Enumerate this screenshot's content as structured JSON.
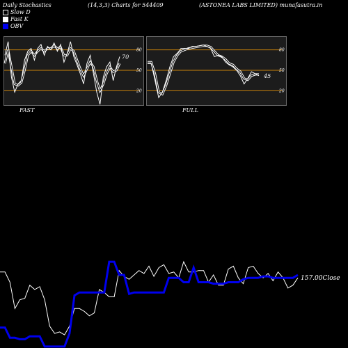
{
  "header": {
    "title": "Daily Stochastics",
    "params": "(14,3,3) Charts for 544409",
    "company": "(ASTONEA LABS LIMITED) munafasutra.in"
  },
  "legend": [
    {
      "label": "Slow  D",
      "color": "#000000"
    },
    {
      "label": "Fast K",
      "color": "#ffffff"
    },
    {
      "label": "OBV",
      "color": "#0000ee"
    }
  ],
  "colors": {
    "background": "#000000",
    "panel": "#1c1c1c",
    "level_line": "#c8820a",
    "obv": "#0000ee",
    "price": "#ffffff"
  },
  "chart_data": [
    {
      "type": "line",
      "title": "FAST",
      "yticks": [
        20,
        50,
        80
      ],
      "ylim": [
        0,
        100
      ],
      "levels": [
        20,
        50,
        80
      ],
      "last_value_label": "70",
      "series": [
        {
          "name": "Fast K",
          "values": [
            72,
            92,
            40,
            18,
            30,
            35,
            65,
            78,
            82,
            65,
            82,
            88,
            72,
            85,
            80,
            90,
            78,
            88,
            62,
            75,
            92,
            70,
            58,
            45,
            30,
            60,
            72,
            45,
            18,
            0,
            40,
            55,
            62,
            35,
            55,
            70
          ]
        },
        {
          "name": "Slow  D",
          "values": [
            60,
            80,
            55,
            30,
            28,
            32,
            50,
            72,
            78,
            72,
            78,
            82,
            78,
            82,
            82,
            86,
            82,
            84,
            72,
            72,
            82,
            78,
            65,
            52,
            42,
            52,
            62,
            55,
            35,
            20,
            30,
            45,
            55,
            48,
            50,
            60
          ]
        }
      ]
    },
    {
      "type": "line",
      "title": "FULL",
      "yticks": [
        20,
        50,
        80
      ],
      "ylim": [
        0,
        100
      ],
      "levels": [
        20,
        50,
        80
      ],
      "last_value_label": "45",
      "series": [
        {
          "name": "Fast K",
          "values": [
            60,
            60,
            35,
            10,
            18,
            35,
            55,
            70,
            75,
            82,
            82,
            82,
            85,
            85,
            86,
            87,
            85,
            82,
            70,
            72,
            70,
            62,
            58,
            55,
            50,
            42,
            30,
            38,
            48,
            45,
            42
          ]
        },
        {
          "name": "Slow  D",
          "values": [
            62,
            62,
            45,
            18,
            15,
            28,
            45,
            62,
            72,
            78,
            80,
            82,
            83,
            84,
            85,
            86,
            86,
            84,
            78,
            72,
            70,
            66,
            60,
            58,
            52,
            48,
            38,
            36,
            42,
            44,
            44
          ]
        }
      ]
    },
    {
      "type": "line",
      "title": "",
      "close_label": "157.00Close",
      "series": [
        {
          "name": "OBV",
          "values": [
            14,
            14,
            7,
            7,
            6,
            6,
            8,
            8,
            8,
            1,
            1,
            1,
            1,
            1,
            10,
            36,
            38,
            38,
            38,
            38,
            38,
            38,
            59,
            59,
            50,
            50,
            37,
            38,
            38,
            38,
            38,
            38,
            38,
            38,
            48,
            48,
            48,
            45,
            45,
            55,
            45,
            45,
            45,
            44,
            44,
            44,
            45,
            45,
            45,
            47,
            48,
            48,
            48,
            49,
            49,
            48,
            48,
            48,
            48,
            48,
            50
          ]
        },
        {
          "name": "Price",
          "values": [
            52,
            52,
            45,
            27,
            33,
            34,
            43,
            40,
            42,
            33,
            15,
            10,
            11,
            9,
            15,
            27,
            27,
            25,
            22,
            24,
            40,
            38,
            35,
            35,
            53,
            49,
            47,
            50,
            53,
            51,
            56,
            49,
            55,
            57,
            51,
            52,
            48,
            59,
            52,
            52,
            53,
            53,
            45,
            50,
            43,
            43,
            54,
            56,
            48,
            44,
            55,
            56,
            51,
            48,
            51,
            46,
            52,
            48,
            41,
            43,
            48
          ]
        }
      ]
    }
  ]
}
